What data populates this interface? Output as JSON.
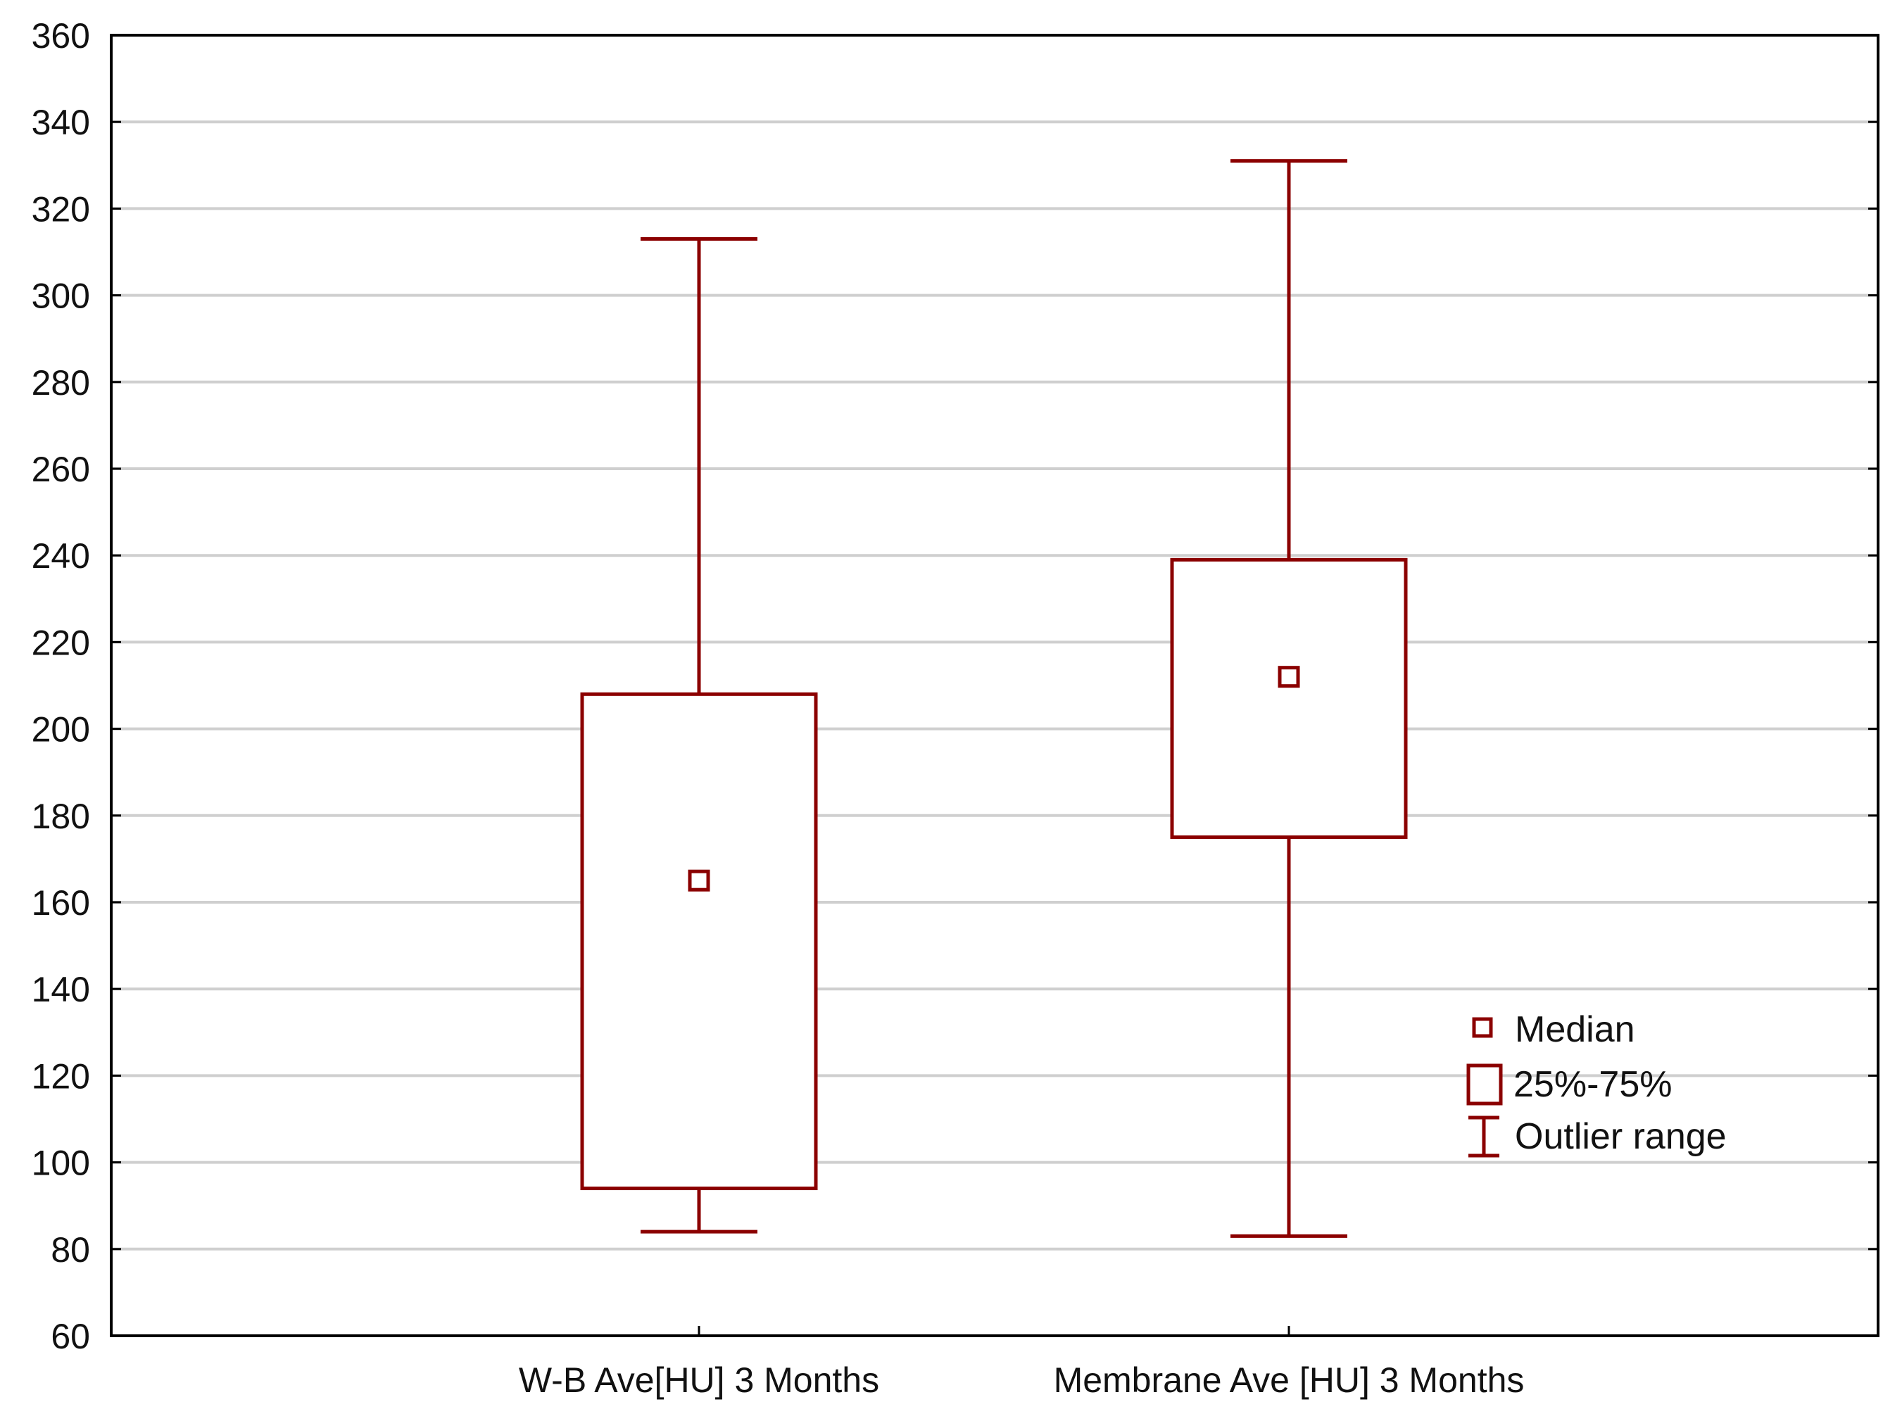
{
  "colors": {
    "box": "#8b0000",
    "grid": "#cfcfcf",
    "frame": "#000000"
  },
  "chart_data": {
    "type": "box",
    "ylim": [
      60,
      360
    ],
    "y_ticks": [
      60,
      80,
      100,
      120,
      140,
      160,
      180,
      200,
      220,
      240,
      260,
      280,
      300,
      320,
      340,
      360
    ],
    "grid": true,
    "legend_position": "right",
    "categories": [
      "W-B Ave[HU] 3 Months",
      "Membrane Ave [HU] 3 Months"
    ],
    "series": [
      {
        "median": 165,
        "q1": 94,
        "q3": 208,
        "min": 84,
        "max": 313
      },
      {
        "median": 212,
        "q1": 175,
        "q3": 239,
        "min": 83,
        "max": 331
      }
    ],
    "legend": {
      "median": "Median",
      "box": "25%-75%",
      "whisker": "Outlier range"
    }
  }
}
